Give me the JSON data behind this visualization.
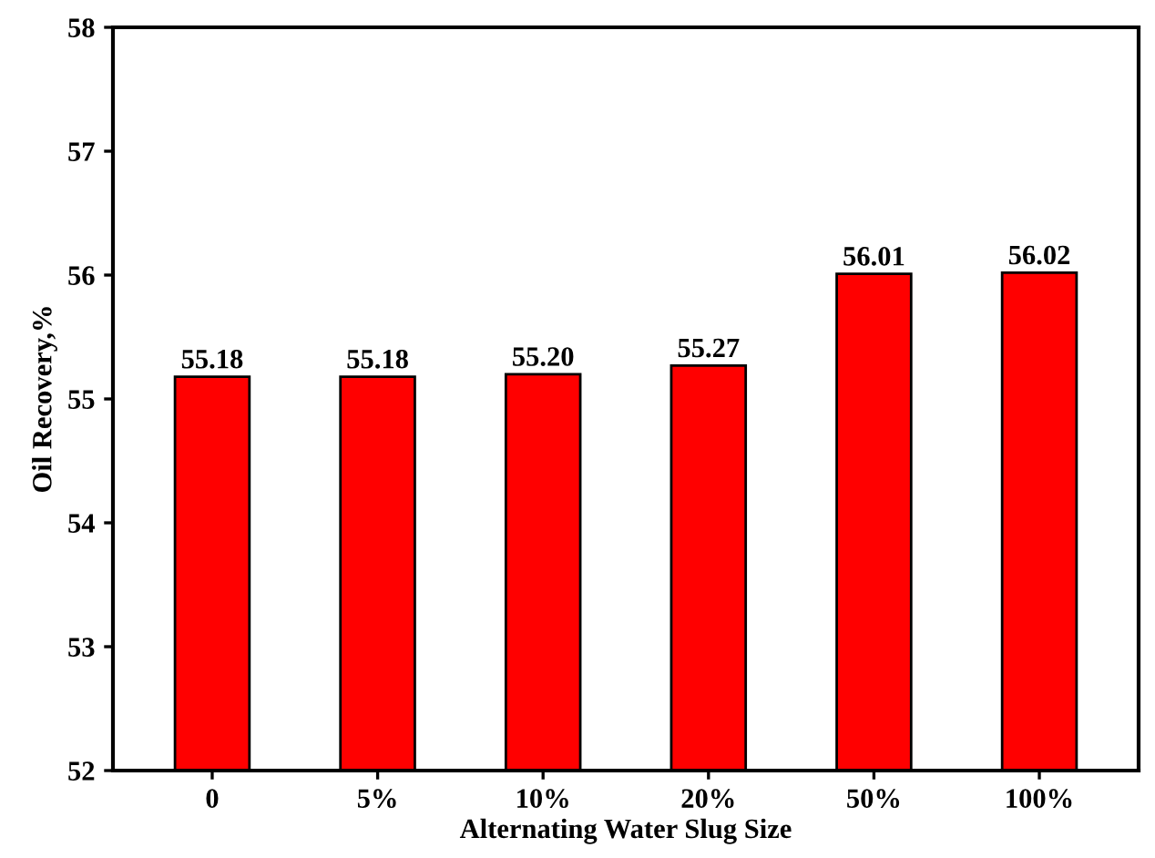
{
  "chart_data": {
    "type": "bar",
    "xlabel": "Alternating Water Slug Size",
    "ylabel": "Oil Recovery,%",
    "categories": [
      "0",
      "5%",
      "10%",
      "20%",
      "50%",
      "100%"
    ],
    "values": [
      55.18,
      55.18,
      55.2,
      55.27,
      56.01,
      56.02
    ],
    "value_labels": [
      "55.18",
      "55.18",
      "55.20",
      "55.27",
      "56.01",
      "56.02"
    ],
    "color": "#ff0000",
    "ylim": [
      52,
      58
    ],
    "yticks": [
      52,
      53,
      54,
      55,
      56,
      57,
      58
    ],
    "grid": false
  }
}
